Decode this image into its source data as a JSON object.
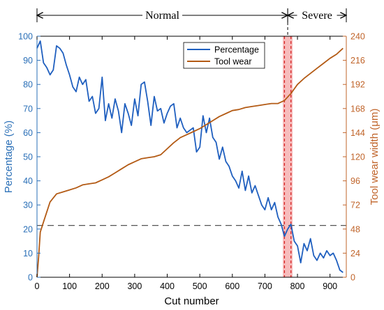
{
  "chart_data": {
    "type": "line",
    "xlabel": "Cut number",
    "ylabel_left": "Percentage (%)",
    "ylabel_right": "Tool wear width (μm)",
    "xlim": [
      0,
      950
    ],
    "ylim_left": [
      0,
      100
    ],
    "ylim_right": [
      0,
      240
    ],
    "x_ticks": [
      0,
      100,
      200,
      300,
      400,
      500,
      600,
      700,
      800,
      900
    ],
    "y_left_ticks": [
      0,
      10,
      20,
      30,
      40,
      50,
      60,
      70,
      80,
      90,
      100
    ],
    "y_right_ticks": [
      0,
      24,
      48,
      72,
      96,
      120,
      144,
      168,
      192,
      216,
      240
    ],
    "colors": {
      "percentage": "#1f5fbf",
      "tool_wear": "#b35a14",
      "left_axis": "#2a6fb7",
      "right_axis": "#c0642a",
      "band": "#f4a6a6",
      "dashed_red": "#d62020",
      "threshold": "#555555"
    },
    "phases": [
      {
        "label": "Normal",
        "from": 0,
        "to": 770
      },
      {
        "label": "Severe",
        "from": 770,
        "to": 950
      }
    ],
    "band": [
      755,
      785
    ],
    "band_lines": [
      760,
      780
    ],
    "threshold_percent": 21.5,
    "grid": false,
    "legend_position": "top-center",
    "series": [
      {
        "name": "Percentage",
        "axis": "left",
        "x": [
          0,
          10,
          20,
          30,
          40,
          50,
          60,
          70,
          80,
          90,
          100,
          110,
          120,
          130,
          140,
          150,
          160,
          170,
          180,
          190,
          200,
          210,
          220,
          230,
          240,
          250,
          260,
          270,
          280,
          290,
          300,
          310,
          320,
          330,
          340,
          350,
          360,
          370,
          380,
          390,
          400,
          410,
          420,
          430,
          440,
          450,
          460,
          470,
          480,
          490,
          500,
          510,
          520,
          530,
          540,
          550,
          560,
          570,
          580,
          590,
          600,
          610,
          620,
          630,
          640,
          650,
          660,
          670,
          680,
          690,
          700,
          710,
          720,
          730,
          740,
          750,
          760,
          770,
          780,
          790,
          800,
          810,
          820,
          830,
          840,
          850,
          860,
          870,
          880,
          890,
          900,
          910,
          920,
          930,
          940
        ],
        "y": [
          95,
          98,
          89,
          87,
          84,
          86,
          96,
          95,
          93,
          88,
          84,
          79,
          77,
          83,
          80,
          82,
          73,
          75,
          68,
          70,
          83,
          65,
          72,
          66,
          74,
          69,
          60,
          72,
          68,
          63,
          74,
          67,
          80,
          81,
          73,
          63,
          75,
          69,
          70,
          64,
          68,
          71,
          72,
          62,
          66,
          62,
          60,
          61,
          62,
          52,
          54,
          67,
          60,
          66,
          58,
          56,
          49,
          54,
          48,
          46,
          42,
          40,
          37,
          44,
          36,
          42,
          35,
          38,
          34,
          30,
          28,
          33,
          28,
          31,
          25,
          22,
          17,
          20,
          22,
          15,
          13,
          6,
          14,
          11,
          16,
          9,
          7,
          10,
          8,
          11,
          9,
          10,
          7,
          3,
          2
        ]
      },
      {
        "name": "Tool wear",
        "axis": "right",
        "x": [
          0,
          5,
          10,
          20,
          40,
          60,
          80,
          100,
          120,
          140,
          160,
          180,
          200,
          220,
          240,
          260,
          280,
          300,
          320,
          340,
          360,
          380,
          400,
          420,
          440,
          460,
          480,
          500,
          520,
          540,
          560,
          580,
          600,
          620,
          640,
          660,
          680,
          700,
          720,
          740,
          760,
          780,
          800,
          820,
          840,
          860,
          880,
          900,
          920,
          940
        ],
        "y": [
          0,
          20,
          45,
          55,
          75,
          83,
          85,
          87,
          89,
          92,
          93,
          94,
          97,
          100,
          104,
          108,
          112,
          115,
          118,
          119,
          120,
          122,
          128,
          134,
          139,
          142,
          145,
          148,
          152,
          156,
          160,
          163,
          166,
          167,
          169,
          170,
          171,
          172,
          173,
          173,
          176,
          183,
          192,
          198,
          203,
          208,
          213,
          218,
          222,
          228
        ]
      }
    ]
  }
}
